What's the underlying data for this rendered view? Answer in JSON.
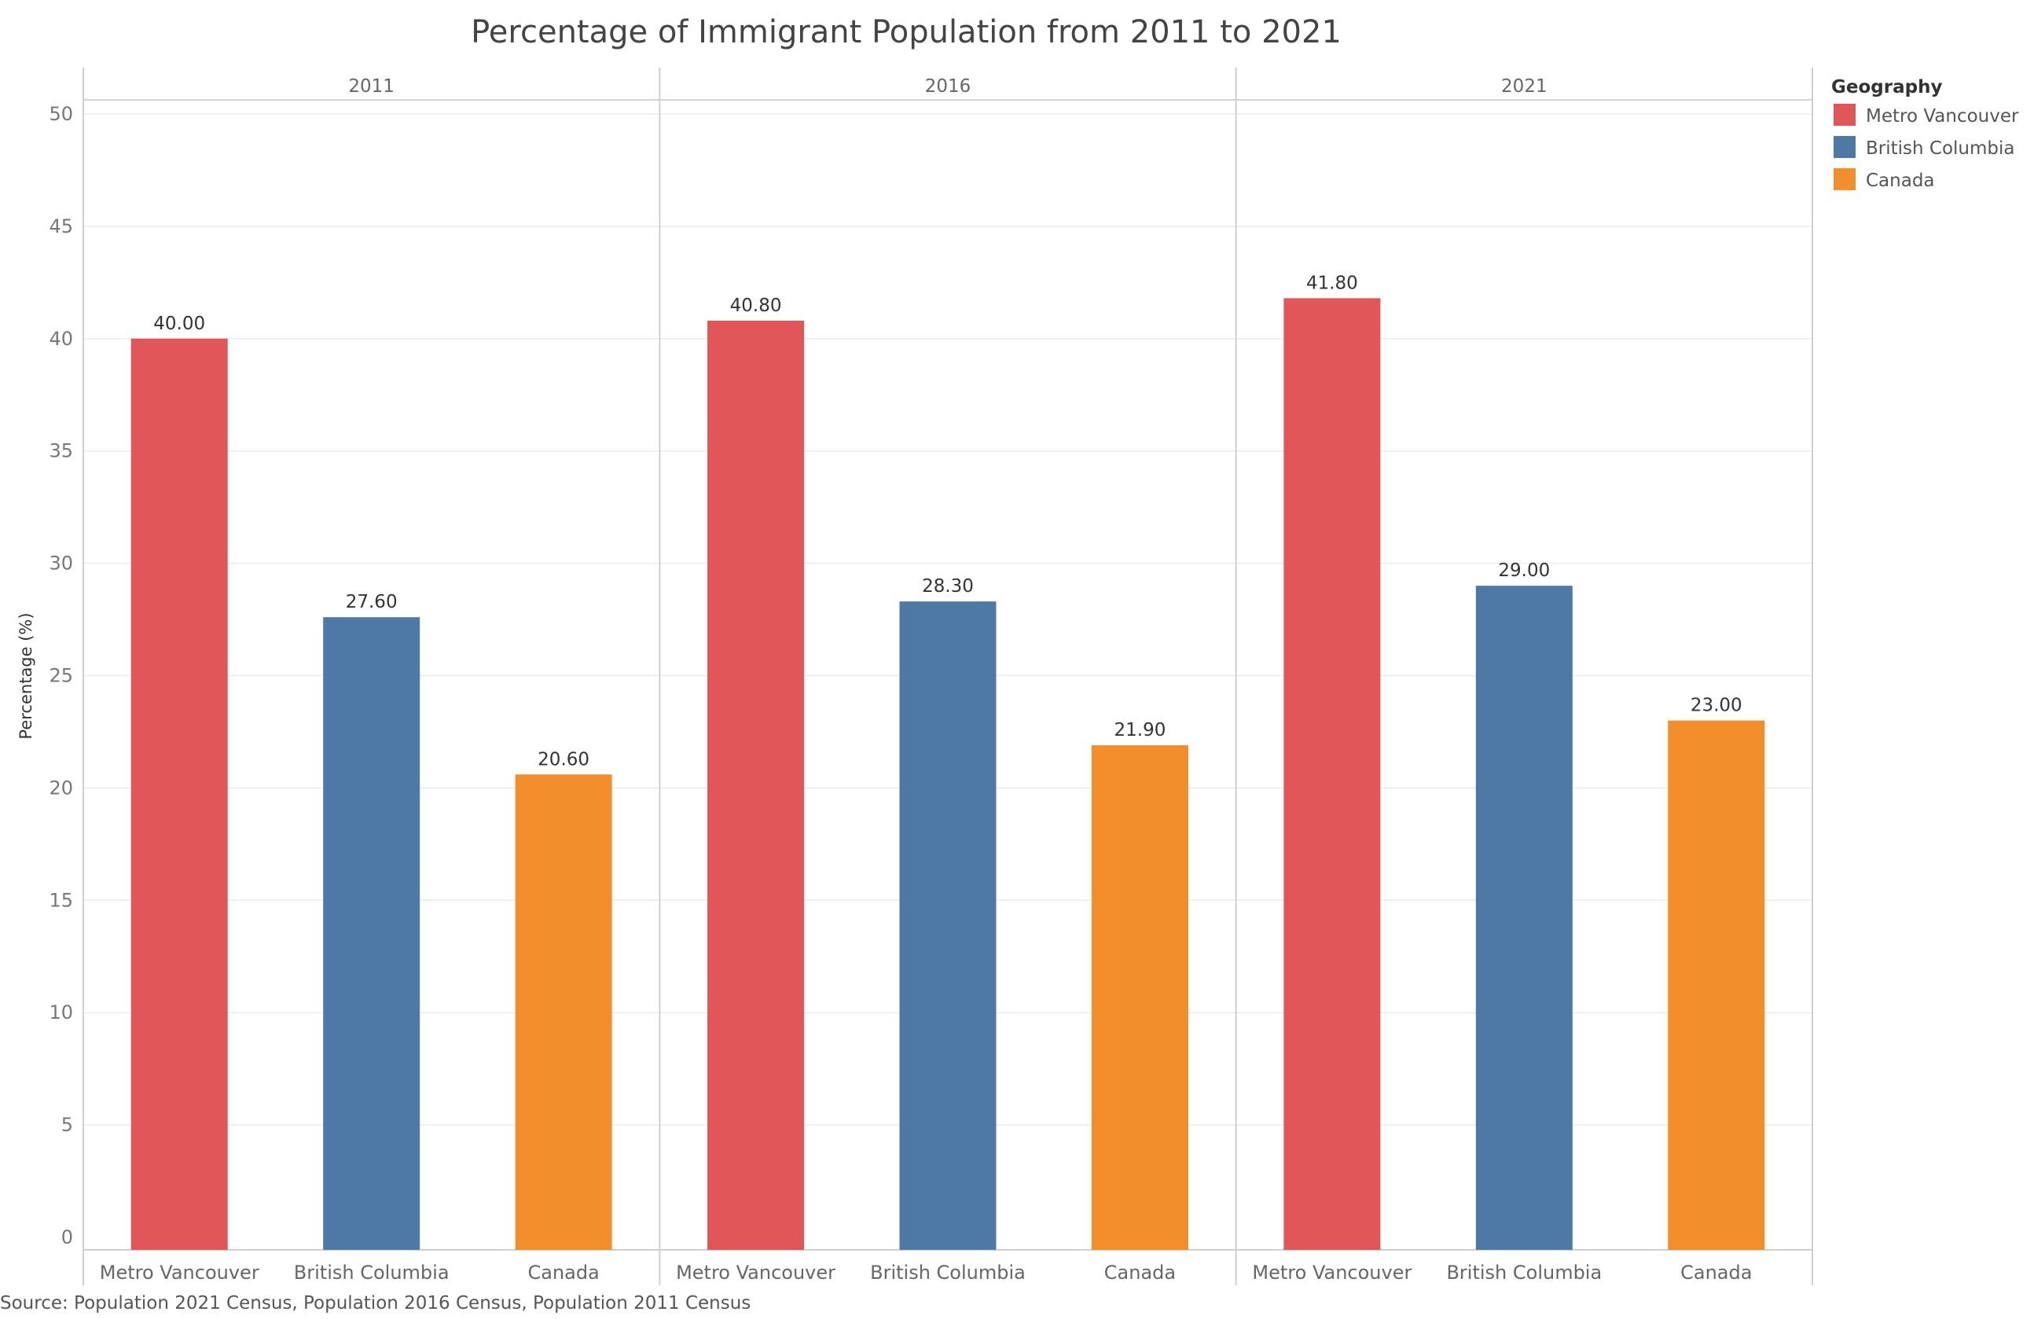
{
  "chart_data": {
    "type": "bar",
    "title": "Percentage of Immigrant Population from 2011 to 2021",
    "ylabel": "Percentage (%)",
    "xlabel": "",
    "ylim": [
      0,
      50
    ],
    "yticks": [
      0,
      5,
      10,
      15,
      20,
      25,
      30,
      35,
      40,
      45,
      50
    ],
    "facets": [
      "2011",
      "2016",
      "2021"
    ],
    "categories": [
      "Metro Vancouver",
      "British Columbia",
      "Canada"
    ],
    "series": [
      {
        "name": "Metro Vancouver",
        "values": [
          40.0,
          40.8,
          41.8
        ]
      },
      {
        "name": "British Columbia",
        "values": [
          27.6,
          28.3,
          29.0
        ]
      },
      {
        "name": "Canada",
        "values": [
          20.6,
          21.9,
          23.0
        ]
      }
    ],
    "data_labels": [
      [
        "40.00",
        "27.60",
        "20.60"
      ],
      [
        "40.80",
        "28.30",
        "21.90"
      ],
      [
        "41.80",
        "29.00",
        "23.00"
      ]
    ],
    "legend": {
      "title": "Geography",
      "placement": "right",
      "items": [
        "Metro Vancouver",
        "British Columbia",
        "Canada"
      ]
    },
    "colors": {
      "Metro Vancouver": "#e15759",
      "British Columbia": "#4e79a7",
      "Canada": "#f28e2b"
    },
    "grid": true,
    "source": "Source: Population 2021 Census, Population 2016 Census, Population 2011 Census"
  }
}
